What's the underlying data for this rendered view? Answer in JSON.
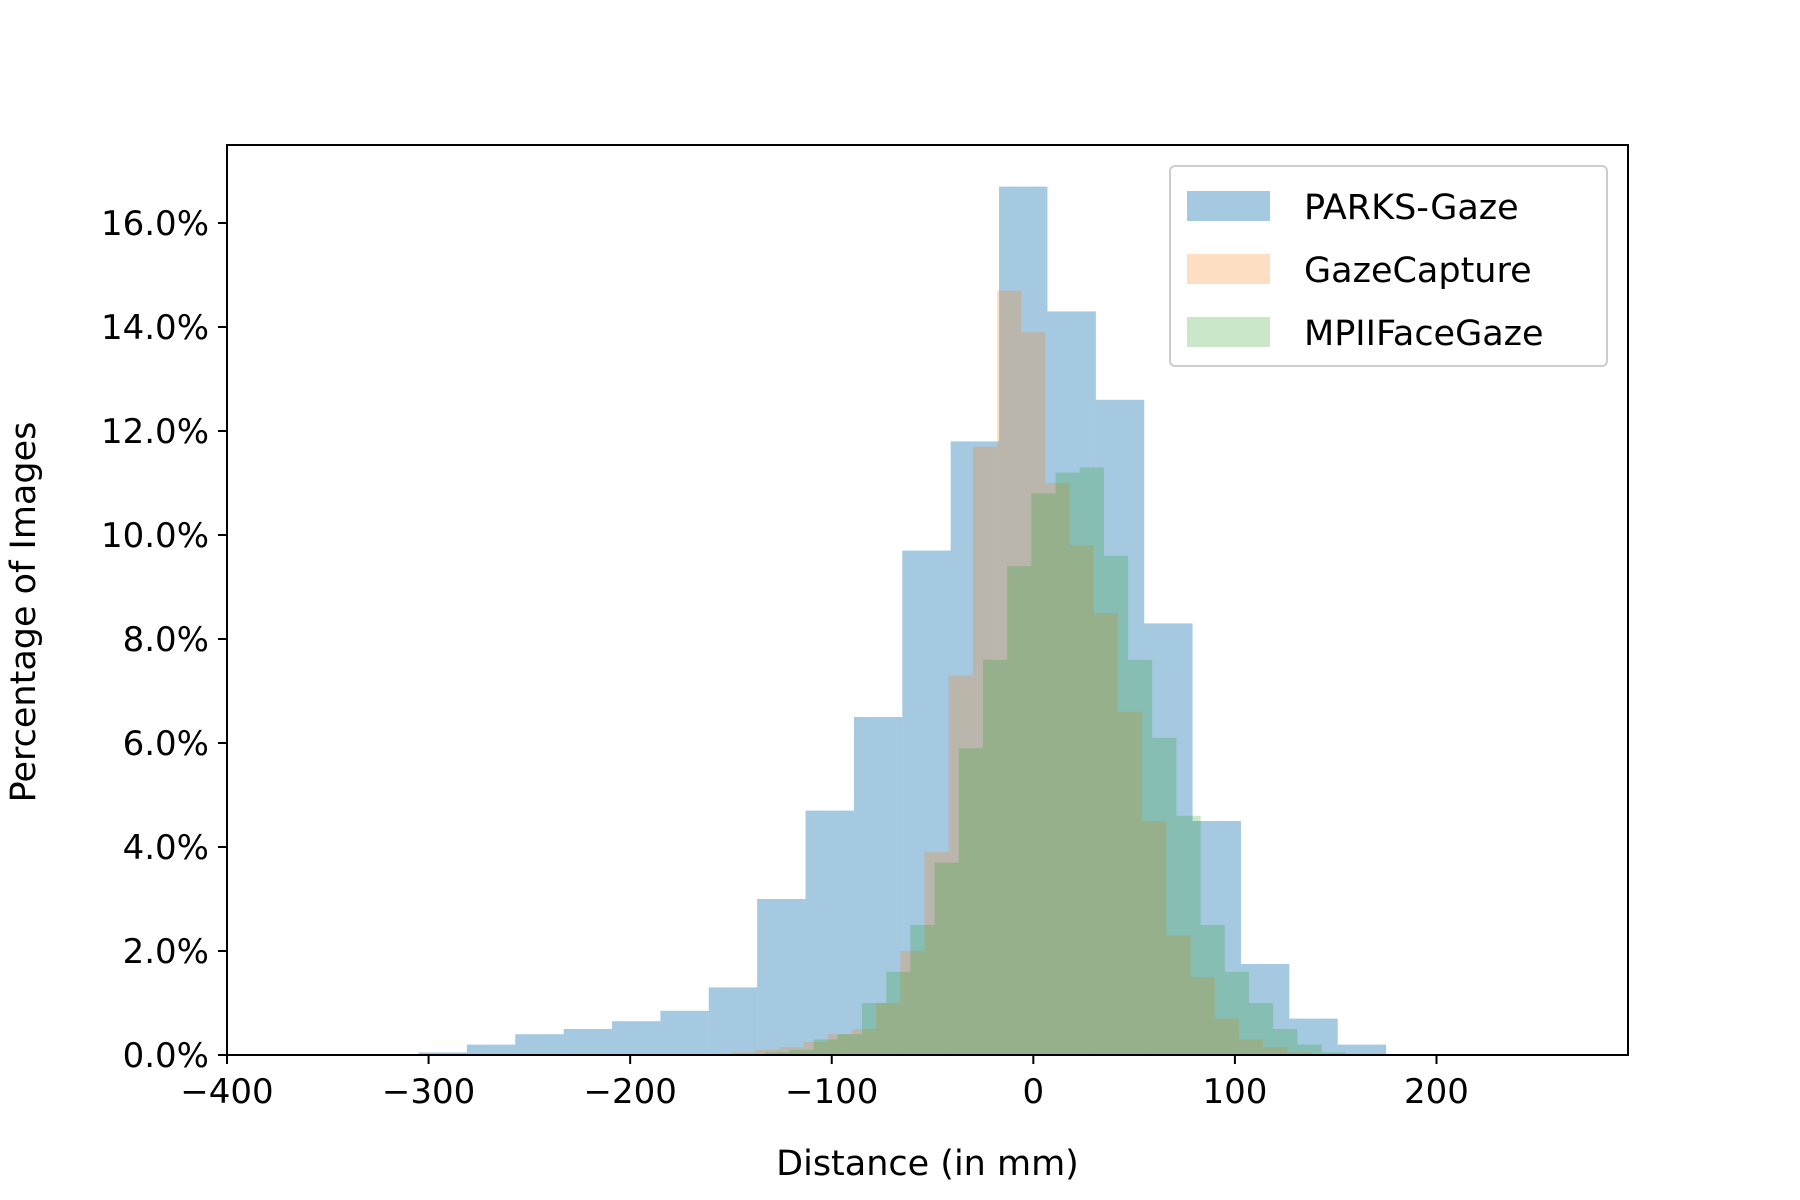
{
  "chart_data": {
    "type": "bar",
    "subtype": "histogram",
    "xlabel": "Distance (in mm)",
    "ylabel": "Percentage of Images",
    "xlim": [
      -400,
      295
    ],
    "ylim": [
      0,
      17.5
    ],
    "x_ticks": [
      -400,
      -300,
      -200,
      -100,
      0,
      100,
      200
    ],
    "x_tick_labels": [
      "−400",
      "−300",
      "−200",
      "−100",
      "0",
      "100",
      "200"
    ],
    "y_ticks": [
      0,
      2,
      4,
      6,
      8,
      10,
      12,
      14,
      16
    ],
    "y_tick_labels": [
      "0.0%",
      "2.0%",
      "4.0%",
      "6.0%",
      "8.0%",
      "10.0%",
      "12.0%",
      "14.0%",
      "16.0%"
    ],
    "legend_position": "top-right",
    "grid": false,
    "series": [
      {
        "name": "PARKS-Gaze",
        "color": "#1f77b4",
        "alpha": 0.4,
        "bin_edges": [
          -305,
          -281,
          -257,
          -233,
          -209,
          -185,
          -161,
          -137,
          -113,
          -89,
          -65,
          -41,
          -17,
          7,
          31,
          55,
          79,
          103,
          127,
          151,
          175,
          199,
          223
        ],
        "values": [
          0.05,
          0.2,
          0.4,
          0.5,
          0.65,
          0.85,
          1.3,
          3.0,
          4.7,
          6.5,
          9.7,
          11.8,
          16.7,
          14.3,
          12.6,
          8.3,
          4.5,
          1.75,
          0.7,
          0.2,
          0.02,
          0.01
        ]
      },
      {
        "name": "GazeCapture",
        "color": "#ff7f0e",
        "alpha": 0.25,
        "bin_edges": [
          -150,
          -138,
          -126,
          -114,
          -102,
          -90,
          -78,
          -66,
          -54,
          -42,
          -30,
          -18,
          -6,
          6,
          18,
          30,
          42,
          54,
          66,
          78,
          90,
          102,
          114,
          126,
          138,
          150
        ],
        "values": [
          0.05,
          0.1,
          0.15,
          0.25,
          0.4,
          0.5,
          1.0,
          2.0,
          3.9,
          7.3,
          11.7,
          14.7,
          13.9,
          11.0,
          9.8,
          8.5,
          6.6,
          4.5,
          2.3,
          1.5,
          0.7,
          0.3,
          0.15,
          0.05,
          0.02
        ]
      },
      {
        "name": "MPIIFaceGaze",
        "color": "#2ca02c",
        "alpha": 0.25,
        "bin_edges": [
          -145,
          -133,
          -121,
          -109,
          -97,
          -85,
          -73,
          -61,
          -49,
          -37,
          -25,
          -13,
          -1,
          11,
          23,
          35,
          47,
          59,
          71,
          83,
          95,
          107,
          119,
          131,
          143,
          155
        ],
        "values": [
          0.02,
          0.05,
          0.1,
          0.3,
          0.4,
          1.0,
          1.6,
          2.5,
          3.7,
          5.9,
          7.6,
          9.4,
          10.8,
          11.2,
          11.3,
          9.6,
          7.6,
          6.1,
          4.6,
          2.5,
          1.6,
          1.0,
          0.5,
          0.2,
          0.05
        ]
      }
    ]
  }
}
